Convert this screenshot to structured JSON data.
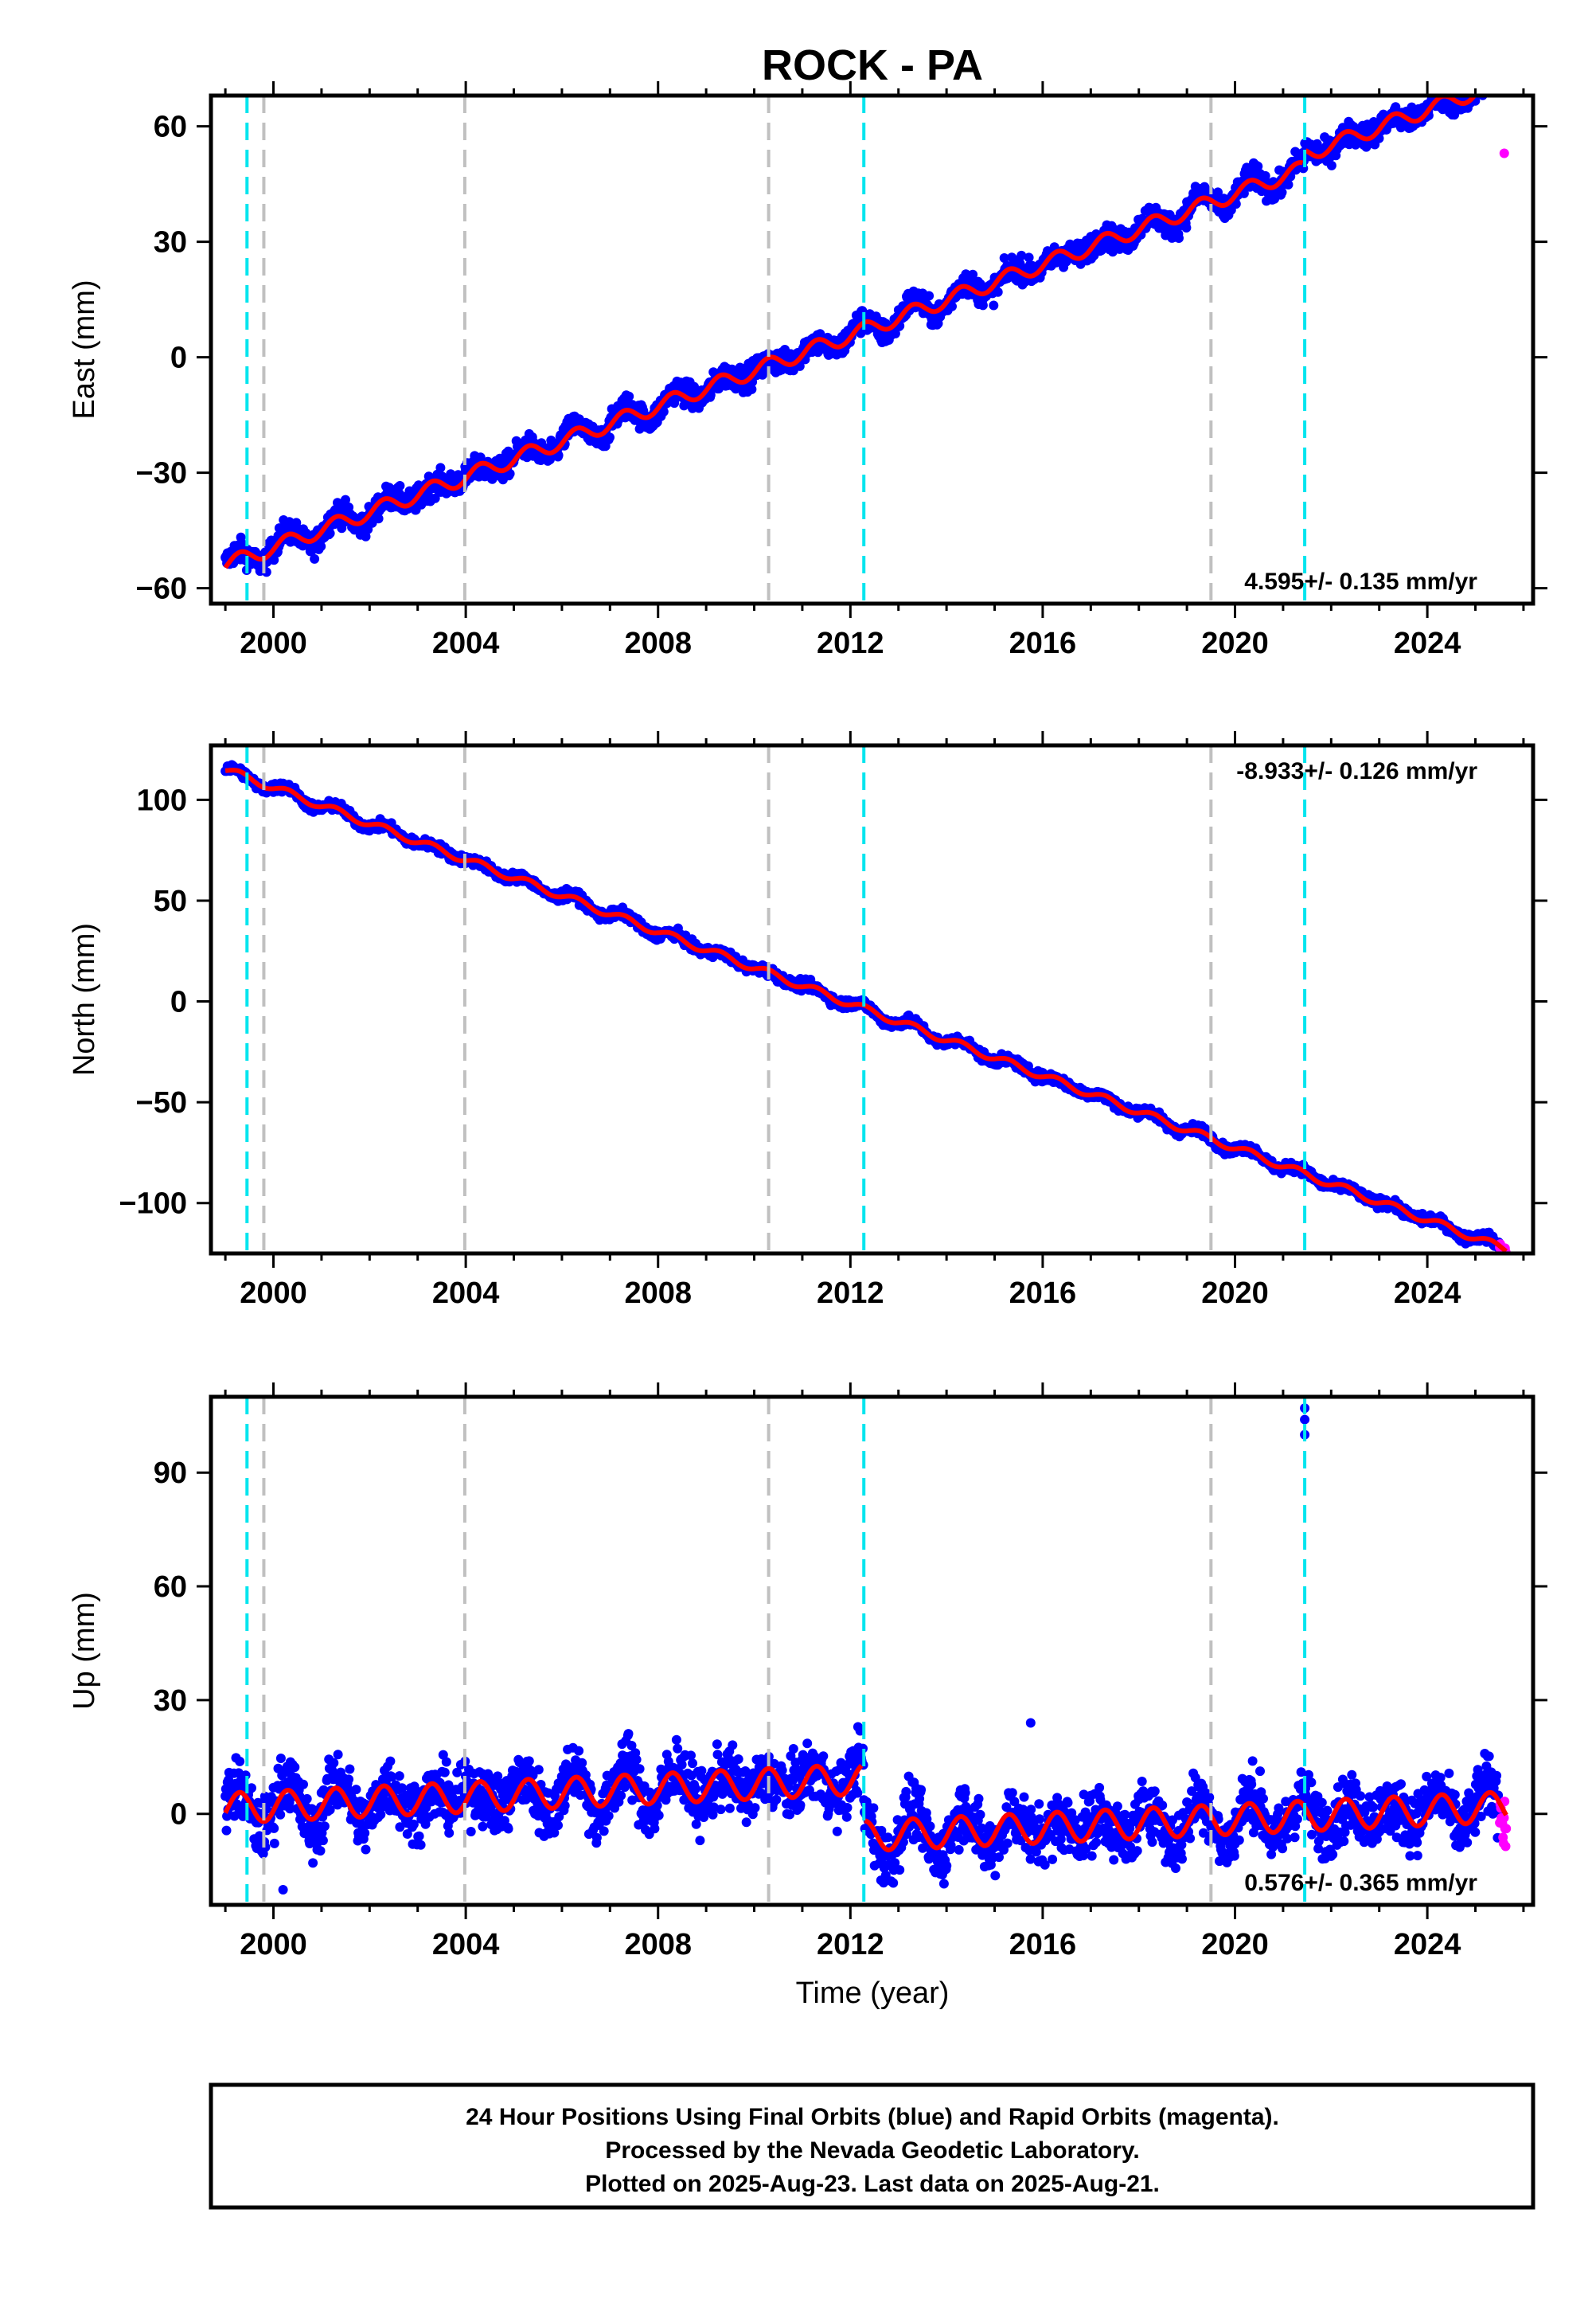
{
  "title": "ROCK - PA",
  "xlabel": "Time (year)",
  "footer": {
    "line1": "24 Hour Positions Using Final Orbits (blue) and Rapid Orbits (magenta).",
    "line2": "Processed by the Nevada Geodetic Laboratory.",
    "line3": "Plotted on 2025-Aug-23. Last data on 2025-Aug-21."
  },
  "colors": {
    "final_orbits": "#0000ff",
    "rapid_orbits": "#ff00ff",
    "model_fit": "#ff0000",
    "equipment_change": "#c0c0c0",
    "earthquake": "#00e5ee"
  },
  "chart_data": [
    {
      "type": "scatter",
      "name": "east",
      "ylabel": "East (mm)",
      "rate_label": "4.595+/- 0.135 mm/yr",
      "rate_position": "bottom-right",
      "xlim": [
        1998.7,
        2026.2
      ],
      "ylim": [
        -64,
        68
      ],
      "xticks": [
        2000,
        2004,
        2008,
        2012,
        2016,
        2020,
        2024
      ],
      "yticks": [
        -60,
        -30,
        0,
        30,
        60
      ],
      "tick_labels": [
        "−60",
        "−30",
        "0",
        "30",
        "60"
      ],
      "trend": {
        "rate_mm_yr": 4.595,
        "value_at_start": -54,
        "start_year": 1999.0
      },
      "seasonal_amplitude_mm": 2.0,
      "scatter_mm": 2.2,
      "data_span": [
        1999.0,
        2025.64
      ],
      "rapid_span": [
        2025.5,
        2025.64
      ],
      "steps": [
        {
          "year": 2021.45,
          "offset_mm": 3.5
        }
      ],
      "outliers": [
        {
          "x": 2019.1,
          "y": 39
        },
        {
          "x": 2025.6,
          "y": 53
        }
      ]
    },
    {
      "type": "scatter",
      "name": "north",
      "ylabel": "North (mm)",
      "rate_label": "-8.933+/- 0.126 mm/yr",
      "rate_position": "top-right",
      "xlim": [
        1998.7,
        2026.2
      ],
      "ylim": [
        -125,
        127
      ],
      "xticks": [
        2000,
        2004,
        2008,
        2012,
        2016,
        2020,
        2024
      ],
      "yticks": [
        -100,
        -50,
        0,
        50,
        100
      ],
      "tick_labels": [
        "−100",
        "−50",
        "0",
        "50",
        "100"
      ],
      "trend": {
        "rate_mm_yr": -8.933,
        "value_at_start": 115,
        "start_year": 1999.0
      },
      "seasonal_amplitude_mm": 1.8,
      "scatter_mm": 1.7,
      "data_span": [
        1999.0,
        2025.64
      ],
      "rapid_span": [
        2025.5,
        2025.64
      ],
      "steps": [],
      "outliers": []
    },
    {
      "type": "scatter",
      "name": "up",
      "ylabel": "Up (mm)",
      "rate_label": "0.576+/- 0.365 mm/yr",
      "rate_position": "bottom-right",
      "xlim": [
        1998.7,
        2026.2
      ],
      "ylim": [
        -24,
        110
      ],
      "xticks": [
        2000,
        2004,
        2008,
        2012,
        2016,
        2020,
        2024
      ],
      "yticks": [
        0,
        30,
        60,
        90
      ],
      "tick_labels": [
        "0",
        "30",
        "60",
        "90"
      ],
      "trend": {
        "rate_mm_yr": 0.576,
        "value_at_start": 1.5,
        "start_year": 1999.0
      },
      "seasonal_amplitude_mm": 4.0,
      "scatter_mm": 5.5,
      "data_span": [
        1999.0,
        2025.64
      ],
      "rapid_span": [
        2025.5,
        2025.64
      ],
      "steps": [
        {
          "year": 2012.28,
          "offset_mm": -15
        }
      ],
      "outliers": [
        {
          "x": 2021.45,
          "y": 100
        },
        {
          "x": 2021.45,
          "y": 104
        },
        {
          "x": 2021.45,
          "y": 107
        },
        {
          "x": 2015.75,
          "y": 24
        },
        {
          "x": 2000.2,
          "y": -20
        }
      ]
    }
  ],
  "vertical_lines": {
    "equipment_change": [
      1999.8,
      2003.98,
      2010.3,
      2019.5
    ],
    "earthquake": [
      1999.45,
      2012.28,
      2021.45
    ]
  }
}
